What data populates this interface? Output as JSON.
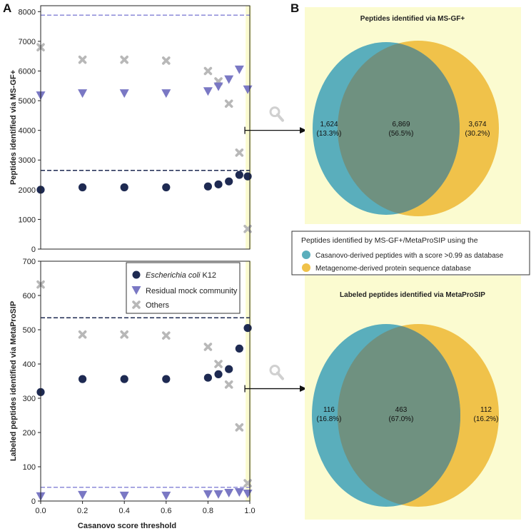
{
  "panel_labels": {
    "a": "A",
    "b": "B"
  },
  "colors": {
    "ecoli": "#1e2a52",
    "mock": "#7a78c4",
    "others": "#b8b8b8",
    "dash_dark": "#1e2a52",
    "dash_light": "#8c8ad8",
    "highlight": "#fbfbd0",
    "venn_left": "#5aaebc",
    "venn_right": "#f0c24a",
    "venn_overlap": "#6f9180"
  },
  "legend_scatter": {
    "ecoli_italic": "Escherichia coli",
    "ecoli_rest": " K12",
    "mock": "Residual mock community",
    "others": "Others"
  },
  "chart_data": [
    {
      "type": "scatter",
      "id": "top",
      "ylabel": "Peptides identified via MS-GF+",
      "xlabel": "",
      "xlim": [
        0,
        1.0
      ],
      "ylim": [
        0,
        8200
      ],
      "xticks": [
        0.0,
        0.2,
        0.4,
        0.6,
        0.8,
        1.0
      ],
      "yticks": [
        0,
        1000,
        2000,
        3000,
        4000,
        5000,
        6000,
        7000,
        8000
      ],
      "highlight_x": [
        0.98,
        1.0
      ],
      "hlines": [
        {
          "series": "mock",
          "y": 7880
        },
        {
          "series": "ecoli",
          "y": 2650
        }
      ],
      "marker_x": 0.99,
      "marker_y": 4000,
      "series": [
        {
          "name": "ecoli",
          "marker": "circle",
          "x": [
            0.0,
            0.2,
            0.4,
            0.6,
            0.8,
            0.85,
            0.9,
            0.95,
            0.99
          ],
          "y": [
            2000,
            2080,
            2080,
            2080,
            2110,
            2180,
            2280,
            2500,
            2450
          ]
        },
        {
          "name": "mock",
          "marker": "triangle",
          "x": [
            0.0,
            0.2,
            0.4,
            0.6,
            0.8,
            0.85,
            0.9,
            0.95,
            0.99
          ],
          "y": [
            5180,
            5250,
            5250,
            5250,
            5320,
            5480,
            5720,
            6050,
            5380
          ]
        },
        {
          "name": "others",
          "marker": "x",
          "x": [
            0.0,
            0.2,
            0.4,
            0.6,
            0.8,
            0.85,
            0.9,
            0.95,
            0.99
          ],
          "y": [
            6800,
            6380,
            6380,
            6350,
            6000,
            5650,
            4900,
            3250,
            680
          ]
        }
      ]
    },
    {
      "type": "scatter",
      "id": "bottom",
      "ylabel": "Labeled peptides identified via MetaProSIP",
      "xlabel": "Casanovo score threshold",
      "xlim": [
        0,
        1.0
      ],
      "ylim": [
        0,
        700
      ],
      "xticks": [
        0.0,
        0.2,
        0.4,
        0.6,
        0.8,
        1.0
      ],
      "yticks": [
        0,
        100,
        200,
        300,
        400,
        500,
        600,
        700
      ],
      "highlight_x": [
        0.98,
        1.0
      ],
      "hlines": [
        {
          "series": "ecoli",
          "y": 535
        },
        {
          "series": "mock",
          "y": 40
        }
      ],
      "marker_x": 0.99,
      "marker_y": 328,
      "series": [
        {
          "name": "ecoli",
          "marker": "circle",
          "x": [
            0.0,
            0.2,
            0.4,
            0.6,
            0.8,
            0.85,
            0.9,
            0.95,
            0.99
          ],
          "y": [
            318,
            356,
            356,
            356,
            360,
            370,
            385,
            445,
            505
          ]
        },
        {
          "name": "mock",
          "marker": "triangle",
          "x": [
            0.0,
            0.2,
            0.4,
            0.6,
            0.8,
            0.85,
            0.9,
            0.95,
            0.99
          ],
          "y": [
            14,
            18,
            16,
            16,
            20,
            20,
            24,
            26,
            22
          ]
        },
        {
          "name": "others",
          "marker": "x",
          "x": [
            0.0,
            0.2,
            0.4,
            0.6,
            0.8,
            0.85,
            0.9,
            0.95,
            0.99
          ],
          "y": [
            632,
            486,
            486,
            483,
            450,
            400,
            340,
            215,
            52
          ]
        }
      ]
    },
    {
      "type": "venn",
      "id": "venn_top",
      "title": "Peptides identified via MS-GF+",
      "left": {
        "count": "1,624",
        "pct": "(13.3%)"
      },
      "overlap": {
        "count": "6,869",
        "pct": "(56.5%)"
      },
      "right": {
        "count": "3,674",
        "pct": "(30.2%)"
      }
    },
    {
      "type": "venn",
      "id": "venn_bottom",
      "title": "Labeled peptides identified via MetaProSIP",
      "left": {
        "count": "116",
        "pct": "(16.8%)"
      },
      "overlap": {
        "count": "463",
        "pct": "(67.0%)"
      },
      "right": {
        "count": "112",
        "pct": "(16.2%)"
      }
    }
  ],
  "venn_legend": {
    "title": "Peptides identified by MS-GF+/MetaProSIP using the",
    "left_label": "Casanovo-derived peptides with a score >0.99 as database",
    "right_label": "Metagenome-derived protein sequence database"
  }
}
